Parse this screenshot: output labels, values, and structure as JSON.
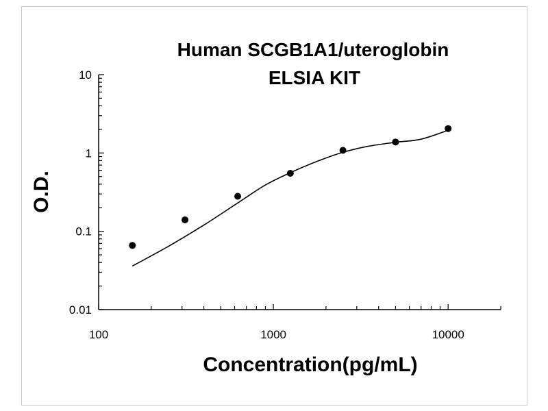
{
  "chart_data": {
    "type": "scatter",
    "title_lines": [
      "Human SCGB1A1/uteroglobin",
      "ELSIA KIT"
    ],
    "xlabel": "Concentration(pg/mL)",
    "ylabel": "O.D.",
    "x_scale": "log",
    "y_scale": "log",
    "xlim": [
      100,
      20000
    ],
    "ylim": [
      0.01,
      10
    ],
    "x_ticks": [
      100,
      1000,
      10000
    ],
    "x_tick_labels": [
      "100",
      "1000",
      "10000"
    ],
    "y_ticks": [
      0.01,
      0.1,
      1,
      10
    ],
    "y_tick_labels": [
      "0.01",
      "0.1",
      "1",
      "10"
    ],
    "grid": false,
    "series": [
      {
        "points": [
          {
            "x": 156,
            "y": 0.066
          },
          {
            "x": 312,
            "y": 0.14
          },
          {
            "x": 625,
            "y": 0.28
          },
          {
            "x": 1250,
            "y": 0.55
          },
          {
            "x": 2500,
            "y": 1.08
          },
          {
            "x": 5000,
            "y": 1.38
          },
          {
            "x": 10000,
            "y": 2.05
          }
        ]
      }
    ],
    "fit_curve": {
      "x": [
        156,
        250,
        400,
        625,
        900,
        1250,
        1800,
        2500,
        3500,
        5000,
        7000,
        10000
      ],
      "y": [
        0.036,
        0.064,
        0.12,
        0.23,
        0.39,
        0.56,
        0.79,
        1.02,
        1.22,
        1.37,
        1.5,
        1.95
      ]
    },
    "colors": {
      "points": "#000000",
      "curve": "#000000",
      "axis": "#000000"
    }
  }
}
